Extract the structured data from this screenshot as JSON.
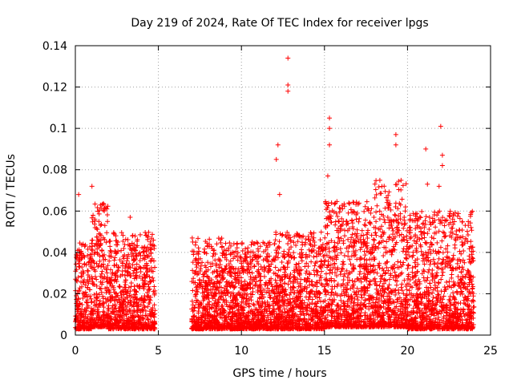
{
  "chart_data": {
    "type": "scatter",
    "title": "Day 219 of 2024, Rate Of TEC Index for receiver lpgs",
    "xlabel": "GPS time / hours",
    "ylabel": "ROTI / TECUs",
    "xlim": [
      0,
      25
    ],
    "ylim": [
      0,
      0.14
    ],
    "x_ticks": [
      0,
      5,
      10,
      15,
      20,
      25
    ],
    "y_ticks": [
      0,
      0.02,
      0.04,
      0.06,
      0.08,
      0.1,
      0.12,
      0.14
    ],
    "x_tick_labels": [
      "0",
      "5",
      "10",
      "15",
      "20",
      "25"
    ],
    "y_tick_labels": [
      "0",
      "0.02",
      "0.04",
      "0.06",
      "0.08",
      "0.1",
      "0.12",
      "0.14"
    ],
    "grid": true,
    "marker": "+",
    "series_color": "#ff0000",
    "data_gap_hours": [
      4.8,
      7.0
    ],
    "notable_points": [
      {
        "x": 0.2,
        "y": 0.068
      },
      {
        "x": 1.0,
        "y": 0.072
      },
      {
        "x": 3.3,
        "y": 0.057
      },
      {
        "x": 12.1,
        "y": 0.085
      },
      {
        "x": 12.2,
        "y": 0.092
      },
      {
        "x": 12.3,
        "y": 0.068
      },
      {
        "x": 12.8,
        "y": 0.134
      },
      {
        "x": 12.8,
        "y": 0.121
      },
      {
        "x": 12.8,
        "y": 0.118
      },
      {
        "x": 15.3,
        "y": 0.105
      },
      {
        "x": 15.3,
        "y": 0.1
      },
      {
        "x": 15.3,
        "y": 0.092
      },
      {
        "x": 15.2,
        "y": 0.077
      },
      {
        "x": 19.3,
        "y": 0.097
      },
      {
        "x": 19.3,
        "y": 0.092
      },
      {
        "x": 21.1,
        "y": 0.09
      },
      {
        "x": 21.2,
        "y": 0.073
      },
      {
        "x": 22.0,
        "y": 0.101
      },
      {
        "x": 22.1,
        "y": 0.087
      },
      {
        "x": 22.1,
        "y": 0.082
      },
      {
        "x": 21.9,
        "y": 0.072
      }
    ],
    "density_profile": [
      {
        "x_start": 0.0,
        "x_end": 1.0,
        "y_min": 0.003,
        "y_max": 0.045
      },
      {
        "x_start": 1.0,
        "x_end": 2.0,
        "y_min": 0.004,
        "y_max": 0.066
      },
      {
        "x_start": 2.0,
        "x_end": 4.8,
        "y_min": 0.003,
        "y_max": 0.05
      },
      {
        "x_start": 7.0,
        "x_end": 9.0,
        "y_min": 0.003,
        "y_max": 0.047
      },
      {
        "x_start": 9.0,
        "x_end": 12.0,
        "y_min": 0.003,
        "y_max": 0.045
      },
      {
        "x_start": 12.0,
        "x_end": 15.0,
        "y_min": 0.003,
        "y_max": 0.05
      },
      {
        "x_start": 15.0,
        "x_end": 18.0,
        "y_min": 0.004,
        "y_max": 0.065
      },
      {
        "x_start": 18.0,
        "x_end": 20.0,
        "y_min": 0.004,
        "y_max": 0.075
      },
      {
        "x_start": 20.0,
        "x_end": 24.0,
        "y_min": 0.003,
        "y_max": 0.06
      }
    ]
  }
}
